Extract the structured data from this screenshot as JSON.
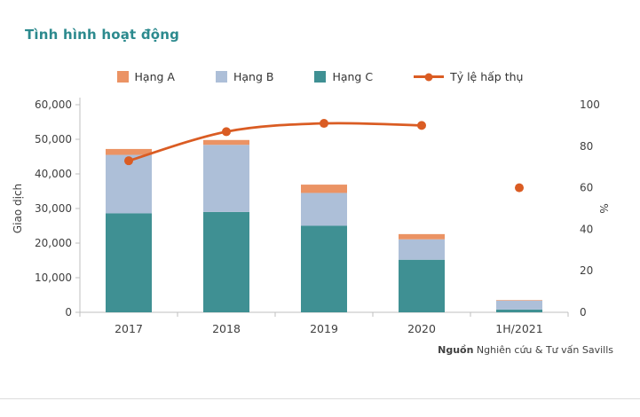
{
  "page": {
    "title": "Tình hình hoạt động",
    "source_label": "Nguồn",
    "source_text": "Nghiên cứu & Tư vấn Savills"
  },
  "colors": {
    "title": "#2C8A8E",
    "axis_text": "#3F3F3F",
    "axis_line": "#BFBFBF"
  },
  "chart_data": {
    "type": "bar+line",
    "stacked": true,
    "title": "Tình hình hoạt động",
    "categories": [
      "2017",
      "2018",
      "2019",
      "2020",
      "1H/2021"
    ],
    "series": [
      {
        "key": "hang-a",
        "name": "Hạng A",
        "color": "#EB9364",
        "values": [
          1700,
          1400,
          2400,
          1500,
          150
        ]
      },
      {
        "key": "hang-b",
        "name": "Hạng B",
        "color": "#ADBFD8",
        "values": [
          16900,
          19400,
          9500,
          5900,
          2600
        ]
      },
      {
        "key": "hang-c",
        "name": "Hạng C",
        "color": "#3F9093",
        "values": [
          28600,
          29000,
          25000,
          15200,
          800
        ]
      }
    ],
    "line_series": {
      "key": "ty-le-hap-thu",
      "name": "Tỷ lệ hấp thụ",
      "color": "#DA5C23",
      "values": [
        73,
        87,
        91,
        90,
        60
      ],
      "connected_through_index": 3
    },
    "ylabel_left": "Giao dịch",
    "ylabel_right": "%",
    "ylim_left": [
      0,
      60000
    ],
    "ytick_step_left": 10000,
    "ylim_right": [
      0,
      100
    ],
    "ytick_step_right": 20,
    "grid": false,
    "legend_position": "top"
  }
}
